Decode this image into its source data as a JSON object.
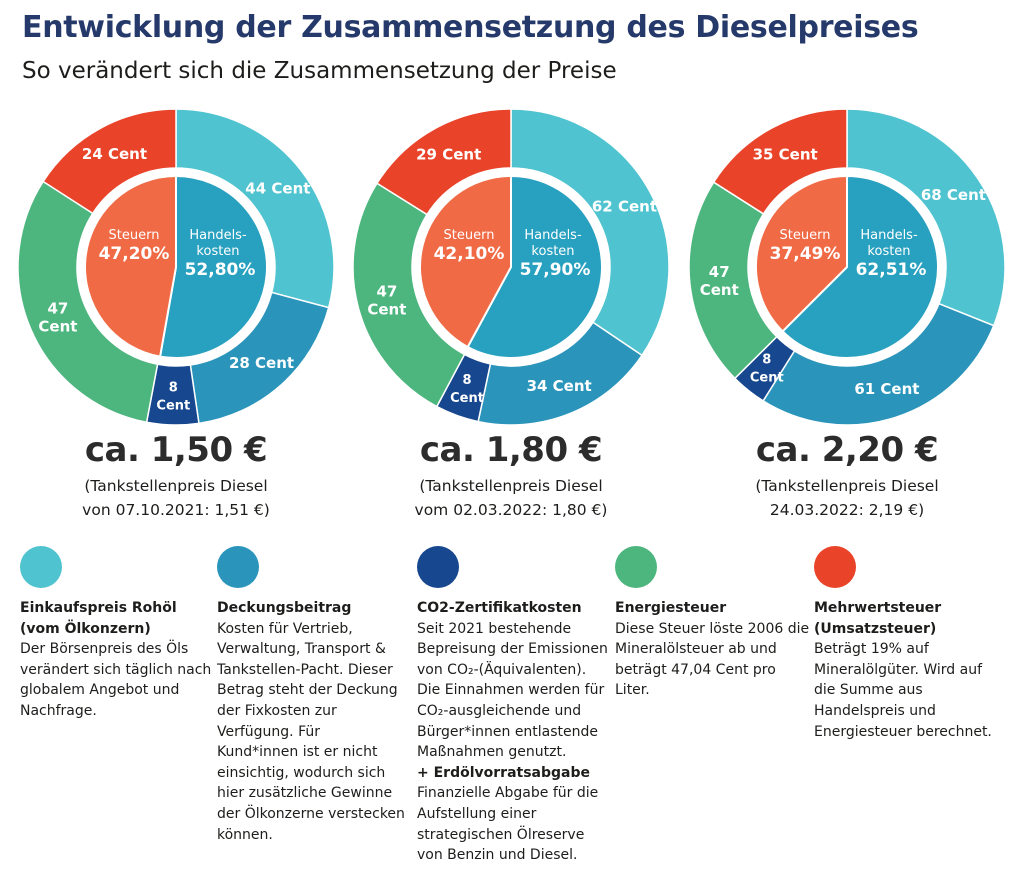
{
  "title": "Entwicklung der Zusammensetzung des Dieselpreises",
  "subtitle": "So verändert sich die Zusammensetzung der Preise",
  "colors": {
    "rohoel": "#4fc3cf",
    "deckung": "#2a94bb",
    "co2": "#17478e",
    "energie": "#4db57e",
    "mwst": "#e9432a",
    "steuern_inner": "#ef6a45",
    "handel_inner": "#28a0bf"
  },
  "chart_data": [
    {
      "type": "pie",
      "title": "ca. 1,50 €",
      "note_line1": "(Tankstellenpreis Diesel",
      "note_line2": "von 07.10.2021: 1,51 €)",
      "outer": [
        {
          "key": "rohoel",
          "value": 44,
          "label": "44 Cent"
        },
        {
          "key": "deckung",
          "value": 28,
          "label": "28 Cent"
        },
        {
          "key": "co2",
          "value": 8,
          "label": "8 Cent"
        },
        {
          "key": "energie",
          "value": 47,
          "label": "47 Cent"
        },
        {
          "key": "mwst",
          "value": 24,
          "label": "24 Cent"
        }
      ],
      "inner": [
        {
          "key": "handel_inner",
          "value": 52.8,
          "name": "Handels-kosten",
          "label": "52,80%"
        },
        {
          "key": "steuern_inner",
          "value": 47.2,
          "name": "Steuern",
          "label": "47,20%"
        }
      ]
    },
    {
      "type": "pie",
      "title": "ca. 1,80 €",
      "note_line1": "(Tankstellenpreis Diesel",
      "note_line2": "vom 02.03.2022: 1,80 €)",
      "outer": [
        {
          "key": "rohoel",
          "value": 62,
          "label": "62 Cent"
        },
        {
          "key": "deckung",
          "value": 34,
          "label": "34 Cent"
        },
        {
          "key": "co2",
          "value": 8,
          "label": "8 Cent"
        },
        {
          "key": "energie",
          "value": 47,
          "label": "47 Cent"
        },
        {
          "key": "mwst",
          "value": 29,
          "label": "29 Cent"
        }
      ],
      "inner": [
        {
          "key": "handel_inner",
          "value": 57.9,
          "name": "Handels-kosten",
          "label": "57,90%"
        },
        {
          "key": "steuern_inner",
          "value": 42.1,
          "name": "Steuern",
          "label": "42,10%"
        }
      ]
    },
    {
      "type": "pie",
      "title": "ca. 2,20 €",
      "note_line1": "(Tankstellenpreis Diesel",
      "note_line2": "24.03.2022: 2,19 €)",
      "outer": [
        {
          "key": "rohoel",
          "value": 68,
          "label": "68 Cent"
        },
        {
          "key": "deckung",
          "value": 61,
          "label": "61 Cent"
        },
        {
          "key": "co2",
          "value": 8,
          "label": "8 Cent"
        },
        {
          "key": "energie",
          "value": 47,
          "label": "47 Cent"
        },
        {
          "key": "mwst",
          "value": 35,
          "label": "35 Cent"
        }
      ],
      "inner": [
        {
          "key": "handel_inner",
          "value": 62.51,
          "name": "Handels-kosten",
          "label": "62,51%"
        },
        {
          "key": "steuern_inner",
          "value": 37.49,
          "name": "Steuern",
          "label": "37,49%"
        }
      ]
    }
  ],
  "legend": [
    {
      "key": "rohoel",
      "title": "Einkaufspreis Rohöl\n(vom Ölkonzern)",
      "text": "Der Börsenpreis des Öls\nverändert sich täglich nach\nglobalem Angebot und\nNachfrage."
    },
    {
      "key": "deckung",
      "title": "Deckungsbeitrag",
      "text": "Kosten für Vertrieb,\nVerwaltung, Transport &\nTankstellen-Pacht. Dieser\nBetrag steht der Deckung\nder Fixkosten zur\nVerfügung. Für\nKund*innen ist er nicht\neinsichtig, wodurch sich\nhier zusätzliche Gewinne\nder Ölkonzerne verstecken\nkönnen."
    },
    {
      "key": "co2",
      "title": "CO2-Zertifikatkosten",
      "text": "Seit 2021 bestehende\nBepreisung der Emissionen\nvon CO₂-(Äquivalenten).\nDie Einnahmen werden für\nCO₂-ausgleichende und\nBürger*innen entlastende\nMaßnahmen genutzt.",
      "subtitle": "+ Erdölvorratsabgabe",
      "subtext": "Finanzielle Abgabe für die\nAufstellung einer\nstrategischen Ölreserve\nvon Benzin und Diesel."
    },
    {
      "key": "energie",
      "title": "Energiesteuer",
      "text": "Diese Steuer löste 2006 die\nMineralölsteuer ab und\nbeträgt 47,04 Cent pro\nLiter."
    },
    {
      "key": "mwst",
      "title": "Mehrwertsteuer\n(Umsatzsteuer)",
      "text": "Beträgt 19% auf\nMineralölgüter. Wird auf\ndie Summe aus\nHandelspreis und\nEnergiesteuer berechnet."
    }
  ]
}
